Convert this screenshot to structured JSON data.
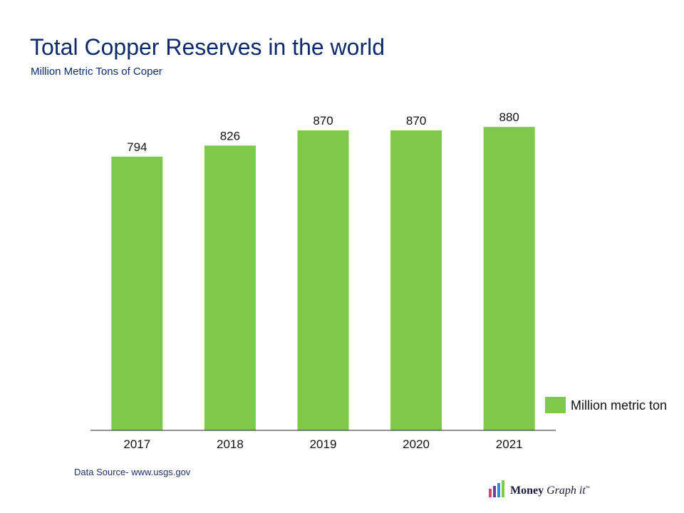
{
  "title": "Total Copper Reserves in the world",
  "subtitle": "Million Metric Tons of Coper",
  "source": "Data Source- www.usgs.gov",
  "logo": {
    "word1": "Money",
    "word2": "Graph it",
    "mark": "™"
  },
  "colors": {
    "bar": "#7ec94a",
    "title": "#0d2b6b",
    "axis": "#222222"
  },
  "chart_data": {
    "type": "bar",
    "categories": [
      "2017",
      "2018",
      "2019",
      "2020",
      "2021"
    ],
    "series": [
      {
        "name": "Million metric ton",
        "values": [
          794,
          826,
          870,
          870,
          880
        ]
      }
    ],
    "ylim": [
      0,
      1000
    ],
    "grid": false,
    "legend_position": "right",
    "data_labels": true
  }
}
